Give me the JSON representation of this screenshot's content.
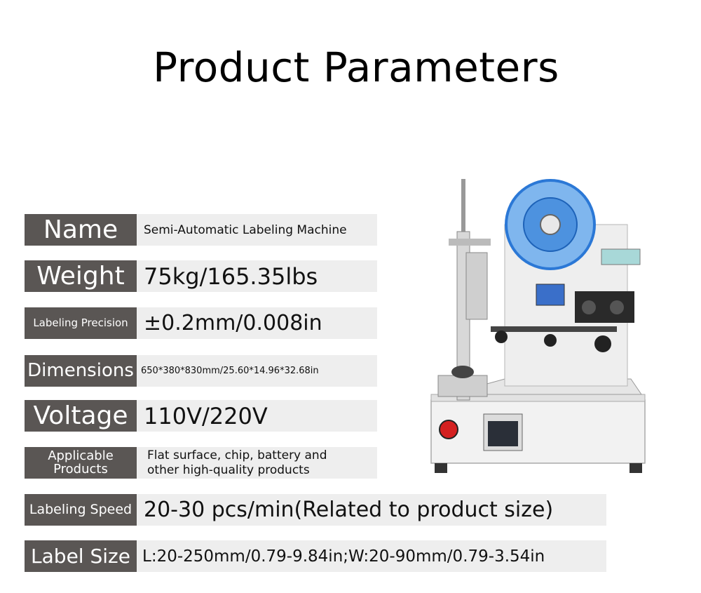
{
  "title": "Product Parameters",
  "params": [
    {
      "label": "Name",
      "value": "Semi-Automatic Labeling Machine"
    },
    {
      "label": "Weight",
      "value": "75kg/165.35lbs"
    },
    {
      "label": "Labeling Precision",
      "value": "±0.2mm/0.008in"
    },
    {
      "label": "Dimensions",
      "value": "650*380*830mm/25.60*14.96*32.68in"
    },
    {
      "label": "Voltage",
      "value": "110V/220V"
    },
    {
      "label_line1": "Applicable",
      "label_line2": "Products",
      "value_line1": "Flat surface, chip, battery and",
      "value_line2": "other high-quality products"
    },
    {
      "label": "Labeling Speed",
      "value": "20-30 pcs/min(Related to product size)"
    },
    {
      "label": "Label Size",
      "value": "L:20-250mm/0.79-9.84in;W:20-90mm/0.79-3.54in"
    }
  ],
  "colors": {
    "label_bg": "#5a5654",
    "value_bg": "#eeeeee",
    "machine_accent": "#2b78d6",
    "stop_button": "#d42020"
  }
}
